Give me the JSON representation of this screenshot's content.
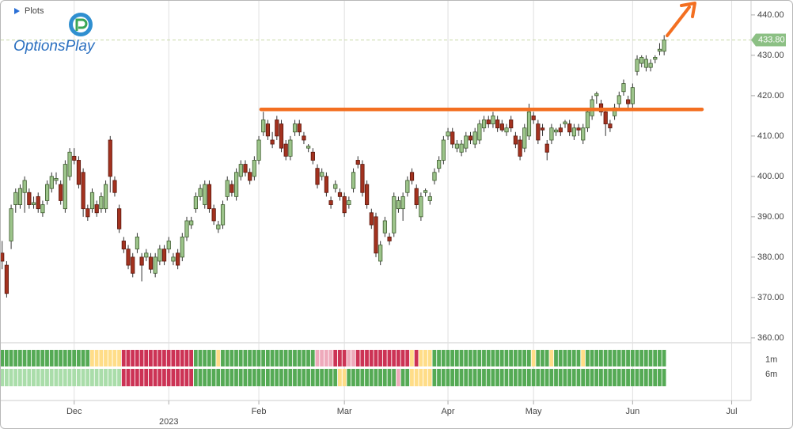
{
  "chart_data": {
    "type": "candlestick",
    "panel_label": "Plots",
    "brand": "OptionsPlay",
    "up_color": "#9cc48a",
    "down_color": "#a3321f",
    "xlim": [
      -0.3,
      166.3
    ],
    "xticks": [
      {
        "value": 16,
        "label": "Dec"
      },
      {
        "value": 37,
        "label": "2023"
      },
      {
        "value": 57,
        "label": "Feb"
      },
      {
        "value": 76,
        "label": "Mar"
      },
      {
        "value": 99,
        "label": "Apr"
      },
      {
        "value": 118,
        "label": "May"
      },
      {
        "value": 140,
        "label": "Jun"
      },
      {
        "value": 162,
        "label": "Jul"
      }
    ],
    "ylim": [
      358.8,
      443.5
    ],
    "yticks": [
      {
        "value": 360,
        "label": "360.00"
      },
      {
        "value": 370,
        "label": "370.00"
      },
      {
        "value": 380,
        "label": "380.00"
      },
      {
        "value": 390,
        "label": "390.00"
      },
      {
        "value": 400,
        "label": "400.00"
      },
      {
        "value": 410,
        "label": "410.00"
      },
      {
        "value": 420,
        "label": "420.00"
      },
      {
        "value": 430,
        "label": "430.00"
      },
      {
        "value": 440,
        "label": "440.00"
      }
    ],
    "grid": true,
    "last_price": {
      "value": 433.8,
      "label": "433.80",
      "color": "#8cc084"
    },
    "resistance": {
      "value": 416.6,
      "from": 57.5,
      "to": 155.4,
      "color": "#f36f21"
    },
    "candles": [
      [
        381,
        384,
        377,
        379
      ],
      [
        378,
        379,
        370,
        371
      ],
      [
        384,
        393,
        382,
        392
      ],
      [
        393,
        397,
        391,
        396
      ],
      [
        393,
        398,
        392,
        397
      ],
      [
        396,
        400,
        391,
        399
      ],
      [
        396,
        397,
        392,
        393
      ],
      [
        393,
        395,
        392,
        393.5
      ],
      [
        395,
        396,
        391,
        392
      ],
      [
        391,
        394,
        390,
        393
      ],
      [
        394,
        399,
        393,
        398
      ],
      [
        397,
        401,
        396,
        400
      ],
      [
        399,
        401,
        398,
        399.5
      ],
      [
        398,
        399,
        393,
        394
      ],
      [
        392,
        404,
        391,
        403
      ],
      [
        400,
        407,
        399,
        406
      ],
      [
        405,
        407,
        403,
        404
      ],
      [
        404,
        405,
        397,
        398
      ],
      [
        401,
        402,
        390,
        392
      ],
      [
        392,
        393,
        389,
        390
      ],
      [
        392,
        397,
        391,
        396
      ],
      [
        393,
        394,
        390,
        391
      ],
      [
        392,
        396,
        391,
        395
      ],
      [
        392,
        399,
        391,
        398
      ],
      [
        409,
        410,
        396,
        400
      ],
      [
        399,
        400,
        395,
        396
      ],
      [
        392,
        393,
        386,
        387
      ],
      [
        384,
        385,
        381,
        382
      ],
      [
        382,
        383,
        377,
        378
      ],
      [
        380,
        381,
        375,
        376
      ],
      [
        382,
        386,
        381,
        385
      ],
      [
        380,
        381,
        374,
        378
      ],
      [
        380,
        382,
        379,
        381
      ],
      [
        380,
        381,
        376,
        377
      ],
      [
        376,
        381,
        375,
        380
      ],
      [
        379,
        383,
        378,
        382
      ],
      [
        382,
        383,
        378,
        379
      ],
      [
        382,
        385,
        381,
        384
      ],
      [
        379,
        381,
        378,
        380
      ],
      [
        381,
        382,
        377,
        378
      ],
      [
        380,
        386,
        379,
        385
      ],
      [
        385,
        390,
        384,
        389
      ],
      [
        388,
        390,
        387,
        389
      ],
      [
        392,
        396,
        391,
        395
      ],
      [
        395,
        398,
        394,
        397
      ],
      [
        393,
        399,
        392,
        398
      ],
      [
        398,
        399,
        391,
        392
      ],
      [
        392,
        393,
        388,
        389
      ],
      [
        387,
        389,
        386,
        388
      ],
      [
        388,
        394,
        387,
        393
      ],
      [
        395,
        400,
        394,
        399
      ],
      [
        398,
        399,
        395,
        396
      ],
      [
        395,
        402,
        394,
        401
      ],
      [
        400,
        404,
        399,
        403
      ],
      [
        403,
        404,
        400,
        401
      ],
      [
        401,
        402,
        398,
        399
      ],
      [
        400,
        405,
        399,
        404
      ],
      [
        404,
        410,
        403,
        409
      ],
      [
        411,
        416,
        410,
        414
      ],
      [
        413,
        414,
        409,
        410
      ],
      [
        409,
        411,
        407,
        408
      ],
      [
        414,
        415,
        409,
        410
      ],
      [
        413,
        414,
        406,
        407
      ],
      [
        408,
        409,
        404,
        405
      ],
      [
        405,
        410,
        404,
        409
      ],
      [
        411,
        414,
        410,
        413
      ],
      [
        413,
        414,
        410,
        411
      ],
      [
        410,
        411,
        408,
        409
      ],
      [
        407,
        408,
        406,
        407.5
      ],
      [
        406,
        407,
        403,
        404
      ],
      [
        402,
        403,
        397,
        398
      ],
      [
        400,
        402,
        399,
        401
      ],
      [
        400,
        401,
        395,
        396
      ],
      [
        394,
        395,
        392,
        393
      ],
      [
        397,
        399,
        396,
        398
      ],
      [
        396,
        397,
        394,
        395
      ],
      [
        395,
        396,
        390,
        391
      ],
      [
        393,
        395,
        392,
        394
      ],
      [
        397,
        402,
        396,
        401
      ],
      [
        404,
        405,
        402,
        403
      ],
      [
        403,
        404,
        395,
        396
      ],
      [
        398,
        399,
        392,
        393
      ],
      [
        391,
        392,
        387,
        388
      ],
      [
        390,
        391,
        380,
        381
      ],
      [
        379,
        384,
        378,
        383
      ],
      [
        386,
        390,
        385,
        389
      ],
      [
        385,
        386,
        383,
        384
      ],
      [
        386,
        396,
        385,
        395
      ],
      [
        392,
        395,
        391,
        394
      ],
      [
        392,
        396,
        389,
        395
      ],
      [
        396,
        400,
        395,
        399
      ],
      [
        401,
        402,
        398,
        399
      ],
      [
        397,
        398,
        392,
        393
      ],
      [
        390,
        396,
        389,
        395
      ],
      [
        396,
        397,
        395,
        396.5
      ],
      [
        394,
        396,
        393,
        395
      ],
      [
        399,
        402,
        398,
        401
      ],
      [
        402,
        405,
        401,
        404
      ],
      [
        404,
        410,
        403,
        409
      ],
      [
        410,
        412,
        409,
        411
      ],
      [
        411,
        412,
        407,
        408
      ],
      [
        407,
        409,
        406,
        408
      ],
      [
        406,
        409,
        405,
        408
      ],
      [
        407,
        411,
        406,
        410
      ],
      [
        410,
        411,
        408,
        409
      ],
      [
        408,
        412,
        407,
        411
      ],
      [
        409,
        414,
        408,
        413
      ],
      [
        412,
        415,
        411,
        414
      ],
      [
        414,
        415,
        412,
        413
      ],
      [
        413,
        416,
        412,
        415
      ],
      [
        414,
        415,
        411,
        412
      ],
      [
        413,
        414,
        411,
        411.5
      ],
      [
        411,
        413,
        410,
        412
      ],
      [
        414,
        415,
        411,
        412
      ],
      [
        410,
        411,
        407,
        408
      ],
      [
        409,
        410,
        404,
        405
      ],
      [
        407,
        413,
        406,
        412
      ],
      [
        410,
        418,
        409,
        416
      ],
      [
        415,
        416,
        413,
        414
      ],
      [
        413,
        414,
        408,
        409
      ],
      [
        412,
        413,
        410,
        411.5
      ],
      [
        408,
        409,
        404,
        406
      ],
      [
        409,
        413,
        408,
        412
      ],
      [
        411,
        412,
        410,
        411.5
      ],
      [
        412,
        413,
        410,
        411
      ],
      [
        413,
        414,
        412,
        413.5
      ],
      [
        413,
        414,
        410,
        411
      ],
      [
        410,
        413,
        409,
        412
      ],
      [
        412,
        413,
        410,
        411.5
      ],
      [
        409,
        413,
        408,
        412
      ],
      [
        412,
        417,
        411,
        416
      ],
      [
        415,
        420,
        414,
        419
      ],
      [
        420,
        421,
        418,
        420.5
      ],
      [
        418,
        419,
        415,
        416
      ],
      [
        416,
        417,
        410,
        413
      ],
      [
        413,
        414,
        411,
        412
      ],
      [
        415,
        418,
        414,
        417
      ],
      [
        418,
        421,
        417,
        420
      ],
      [
        421,
        424,
        420,
        423
      ],
      [
        419,
        420,
        417,
        418
      ],
      [
        418,
        423,
        417,
        422
      ],
      [
        426,
        430,
        425,
        429
      ],
      [
        428,
        430,
        427,
        429.5
      ],
      [
        427,
        430,
        426,
        429
      ],
      [
        427,
        429,
        426,
        428
      ],
      [
        429,
        430,
        428,
        429.5
      ],
      [
        431,
        433,
        430,
        431.5
      ],
      [
        431,
        435,
        430,
        433.8
      ]
    ],
    "heatmap": {
      "rows": [
        "1m",
        "6m"
      ],
      "colors": [
        [
          "#5a5",
          "#5a5",
          "#5a5",
          "#5a5",
          "#5a5",
          "#5a5",
          "#5a5",
          "#5a5",
          "#5a5",
          "#5a5",
          "#5a5",
          "#5a5",
          "#5a5",
          "#5a5",
          "#5a5",
          "#5a5",
          "#5a5",
          "#5a5",
          "#5a5",
          "#5a5",
          "#fd8",
          "#fd8",
          "#fd8",
          "#fd8",
          "#fd8",
          "#fd8",
          "#fd8",
          "#c35",
          "#c35",
          "#c35",
          "#c35",
          "#c35",
          "#c35",
          "#c35",
          "#c35",
          "#c35",
          "#c35",
          "#c35",
          "#c35",
          "#c35",
          "#c35",
          "#c35",
          "#c35",
          "#5a5",
          "#5a5",
          "#5a5",
          "#5a5",
          "#5a5",
          "#fd8",
          "#5a5",
          "#5a5",
          "#5a5",
          "#5a5",
          "#5a5",
          "#5a5",
          "#5a5",
          "#5a5",
          "#5a5",
          "#5a5",
          "#5a5",
          "#5a5",
          "#5a5",
          "#5a5",
          "#5a5",
          "#5a5",
          "#5a5",
          "#5a5",
          "#5a5",
          "#5a5",
          "#5a5",
          "#eab",
          "#eab",
          "#eab",
          "#eab",
          "#c35",
          "#c35",
          "#c35",
          "#eab",
          "#eab",
          "#c35",
          "#c35",
          "#c35",
          "#c35",
          "#c35",
          "#c35",
          "#c35",
          "#c35",
          "#c35",
          "#c35",
          "#c35",
          "#c35",
          "#fd8",
          "#c35",
          "#fd8",
          "#fd8",
          "#fd8",
          "#5a5",
          "#5a5",
          "#5a5",
          "#5a5",
          "#5a5",
          "#5a5",
          "#5a5",
          "#5a5",
          "#5a5",
          "#5a5",
          "#5a5",
          "#5a5",
          "#5a5",
          "#5a5",
          "#5a5",
          "#5a5",
          "#5a5",
          "#5a5",
          "#5a5",
          "#5a5",
          "#5a5",
          "#5a5",
          "#fd8",
          "#5a5",
          "#5a5",
          "#5a5",
          "#fd8",
          "#5a5",
          "#5a5",
          "#5a5",
          "#5a5",
          "#5a5",
          "#5a5",
          "#fd8",
          "#5a5",
          "#5a5",
          "#5a5",
          "#5a5",
          "#5a5",
          "#5a5",
          "#5a5",
          "#5a5",
          "#5a5",
          "#5a5",
          "#5a5",
          "#5a5",
          "#5a5",
          "#5a5",
          "#5a5",
          "#5a5",
          "#5a5",
          "#5a5"
        ],
        [
          "#ada",
          "#ada",
          "#ada",
          "#ada",
          "#ada",
          "#ada",
          "#ada",
          "#ada",
          "#ada",
          "#ada",
          "#ada",
          "#ada",
          "#ada",
          "#ada",
          "#ada",
          "#ada",
          "#ada",
          "#ada",
          "#ada",
          "#ada",
          "#ada",
          "#ada",
          "#ada",
          "#ada",
          "#ada",
          "#ada",
          "#ada",
          "#c35",
          "#c35",
          "#c35",
          "#c35",
          "#c35",
          "#c35",
          "#c35",
          "#c35",
          "#c35",
          "#c35",
          "#c35",
          "#c35",
          "#c35",
          "#c35",
          "#c35",
          "#c35",
          "#5a5",
          "#5a5",
          "#5a5",
          "#5a5",
          "#5a5",
          "#5a5",
          "#5a5",
          "#5a5",
          "#5a5",
          "#5a5",
          "#5a5",
          "#5a5",
          "#5a5",
          "#5a5",
          "#5a5",
          "#5a5",
          "#5a5",
          "#5a5",
          "#5a5",
          "#5a5",
          "#5a5",
          "#5a5",
          "#5a5",
          "#5a5",
          "#5a5",
          "#5a5",
          "#5a5",
          "#5a5",
          "#5a5",
          "#5a5",
          "#5a5",
          "#5a5",
          "#fd8",
          "#fd8",
          "#5a5",
          "#5a5",
          "#5a5",
          "#5a5",
          "#5a5",
          "#5a5",
          "#5a5",
          "#5a5",
          "#5a5",
          "#5a5",
          "#5a5",
          "#eab",
          "#5a5",
          "#5a5",
          "#fd8",
          "#fd8",
          "#fd8",
          "#fd8",
          "#fd8",
          "#5a5",
          "#5a5",
          "#5a5",
          "#5a5",
          "#5a5",
          "#5a5",
          "#5a5",
          "#5a5",
          "#5a5",
          "#5a5",
          "#5a5",
          "#5a5",
          "#5a5",
          "#5a5",
          "#5a5",
          "#5a5",
          "#5a5",
          "#5a5",
          "#5a5",
          "#5a5",
          "#5a5",
          "#5a5",
          "#5a5",
          "#5a5",
          "#5a5",
          "#5a5",
          "#5a5",
          "#5a5",
          "#5a5",
          "#5a5",
          "#5a5",
          "#5a5",
          "#5a5",
          "#5a5",
          "#5a5",
          "#5a5",
          "#5a5",
          "#5a5",
          "#5a5",
          "#5a5",
          "#5a5",
          "#5a5",
          "#5a5",
          "#5a5",
          "#5a5",
          "#5a5",
          "#5a5",
          "#5a5",
          "#5a5",
          "#5a5",
          "#5a5",
          "#5a5"
        ]
      ]
    }
  }
}
